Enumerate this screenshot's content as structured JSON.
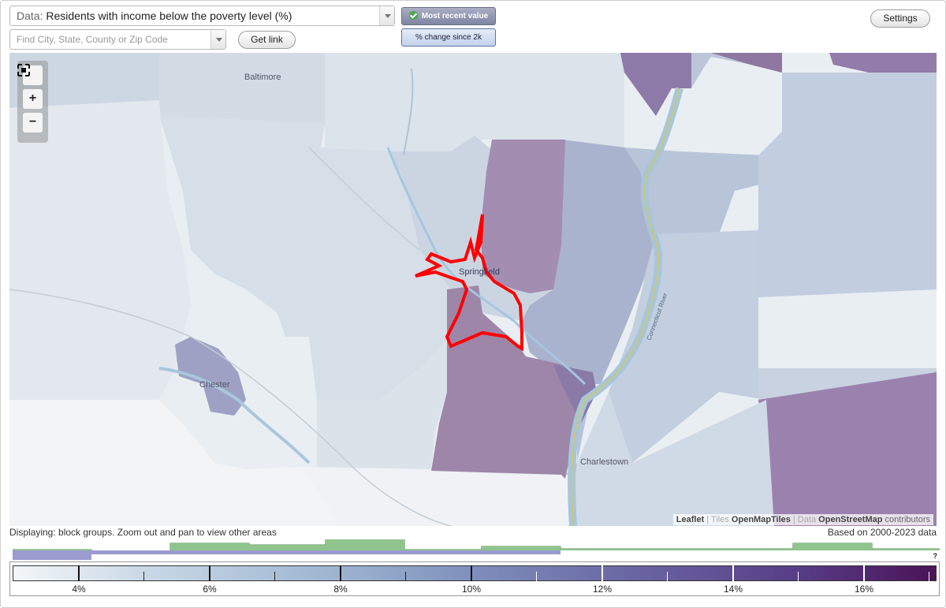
{
  "header": {
    "data_prefix": "Data:",
    "data_value": "Residents with income below the poverty level (%)",
    "search_placeholder": "Find City, State, County or Zip Code",
    "get_link_label": "Get link",
    "toggle_active_label": "Most recent value",
    "toggle_inactive_label": "% change since 2k",
    "settings_label": "Settings"
  },
  "map": {
    "zoom_fit_icon": "fullscreen-icon",
    "zoom_in_label": "+",
    "zoom_out_label": "−",
    "labels": {
      "baltimore": "Baltimore",
      "springfield": "Springfield",
      "chester": "Chester",
      "charlestown": "Charlestown",
      "river": "Connecticut River"
    },
    "attribution": {
      "leaflet": "Leaflet",
      "sep1": " | Tiles ",
      "tiles": "OpenMapTiles",
      "sep2": " | Data ",
      "data": "OpenStreetMap",
      "contributors": " contributors"
    },
    "colors": {
      "low": "#e6ecf1",
      "mid": "#a9b8cf",
      "high": "#8f7aa8",
      "highlight": "#ff0000",
      "water": "#a3c7e0"
    }
  },
  "footer": {
    "display_note": "Displaying: block groups. Zoom out and pan to view other areas",
    "based_on": "Based on 2000-2023 data",
    "question_mark": "?"
  },
  "legend": {
    "ticks": [
      "4%",
      "6%",
      "8%",
      "10%",
      "12%",
      "14%",
      "16%"
    ],
    "histogram_color": "#8fc48f",
    "selection_color": "#9b9bd0"
  }
}
